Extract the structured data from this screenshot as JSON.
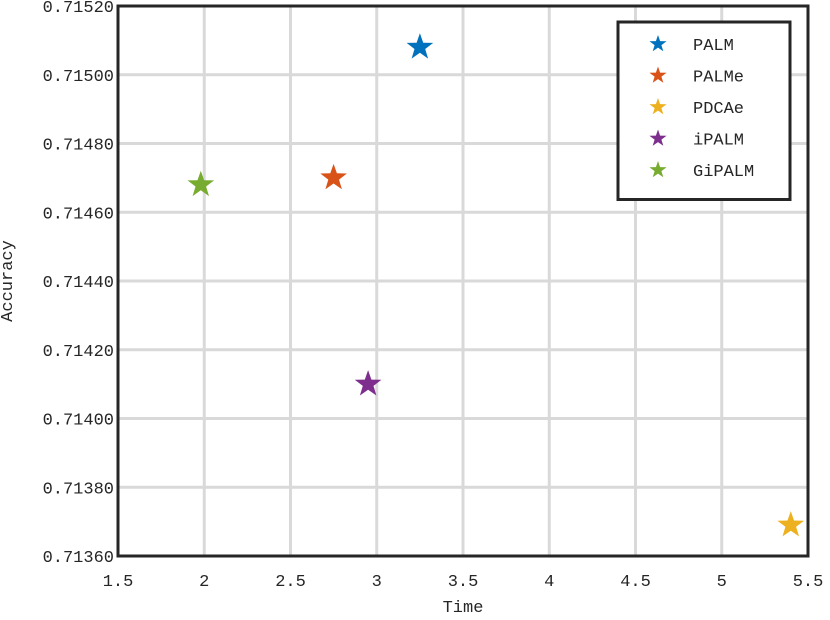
{
  "chart_data": {
    "type": "scatter",
    "xlabel": "Time",
    "ylabel": "Accuracy",
    "xlim": [
      1.5,
      5.5
    ],
    "xticks": [
      1.5,
      2,
      2.5,
      3,
      3.5,
      4,
      4.5,
      5,
      5.5
    ],
    "ylim": [
      0.7136,
      0.7152
    ],
    "yticks": [
      {
        "value": 0.7136,
        "label": "0.71360"
      },
      {
        "value": 0.7138,
        "label": "0.71380"
      },
      {
        "value": 0.714,
        "label": "0.71400"
      },
      {
        "value": 0.7142,
        "label": "0.71420"
      },
      {
        "value": 0.7144,
        "label": "0.71440"
      },
      {
        "value": 0.7146,
        "label": "0.71460"
      },
      {
        "value": 0.7148,
        "label": "0.71480"
      },
      {
        "value": 0.715,
        "label": "0.71500"
      },
      {
        "value": 0.7152,
        "label": "0.71520"
      }
    ],
    "grid": true,
    "legend": "top-right",
    "series": [
      {
        "name": "PALM",
        "color": "#0072BD",
        "x": [
          3.25
        ],
        "values": [
          0.71508
        ]
      },
      {
        "name": "PALMe",
        "color": "#D95319",
        "x": [
          2.75
        ],
        "values": [
          0.7147
        ]
      },
      {
        "name": "PDCAe",
        "color": "#EDB120",
        "x": [
          5.4
        ],
        "values": [
          0.71369
        ]
      },
      {
        "name": "iPALM",
        "color": "#7E2F8E",
        "x": [
          2.95
        ],
        "values": [
          0.7141
        ]
      },
      {
        "name": "GiPALM",
        "color": "#77AC30",
        "x": [
          1.98
        ],
        "values": [
          0.71468
        ]
      }
    ]
  }
}
